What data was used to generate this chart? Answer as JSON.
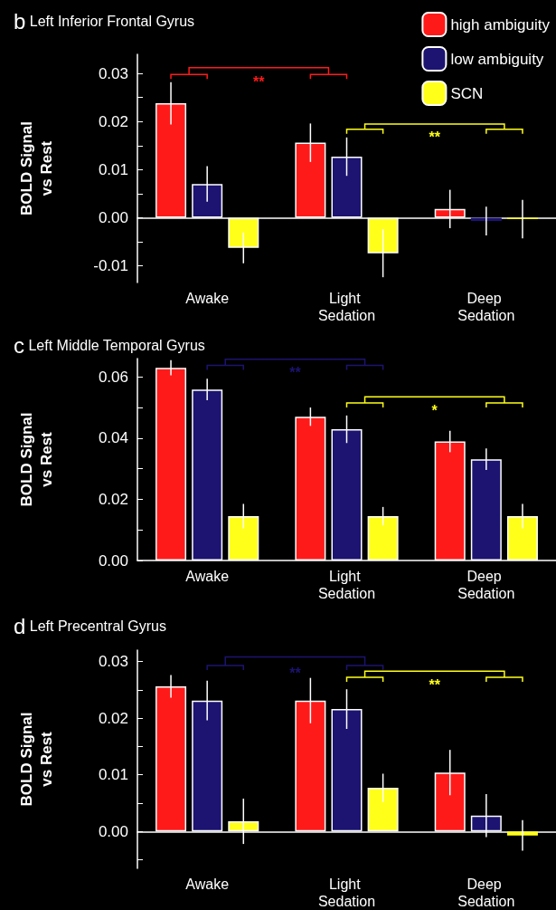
{
  "chart_data": [
    {
      "type": "bar",
      "title": "b Left Inferior Frontal Gyrus",
      "ylabel": "BOLD Signal\nvs Rest",
      "categories": [
        "Awake",
        "Light Sedation",
        "Deep Sedation"
      ],
      "series": [
        {
          "name": "high ambiguity",
          "color": "#ff1a1a",
          "values": [
            0.0238,
            0.0156,
            0.0018
          ],
          "errors": [
            0.0044,
            0.004,
            0.004
          ]
        },
        {
          "name": "low ambiguity",
          "color": "#1c1470",
          "values": [
            0.007,
            0.0127,
            -0.0007
          ],
          "errors": [
            0.0037,
            0.004,
            0.003
          ]
        },
        {
          "name": "SCN",
          "color": "#ffff1a",
          "values": [
            -0.0063,
            -0.0074,
            -0.0003
          ],
          "errors": [
            0.0032,
            0.005,
            0.004
          ]
        }
      ],
      "ylim": [
        -0.0135,
        0.034
      ],
      "yticks": [
        -0.01,
        {
          "value": -0.005,
          "label": null
        },
        "0.00",
        {
          "value": 0.005,
          "label": null
        },
        0.01,
        {
          "value": 0.015,
          "label": null
        },
        0.02,
        {
          "value": 0.025,
          "label": null
        },
        0.03
      ],
      "annotations": [
        "**",
        "**"
      ],
      "grid": false,
      "legend": "top right"
    },
    {
      "type": "bar",
      "title": "c Left Middle Temporal Gyrus",
      "ylabel": "BOLD Signal\nvs Rest",
      "categories": [
        "Awake",
        "Light Sedation",
        "Deep Sedation"
      ],
      "series": [
        {
          "color": "#ff1a1a",
          "values": [
            0.063,
            0.047,
            0.0389
          ],
          "errors": [
            0.0025,
            0.003,
            0.0035
          ]
        },
        {
          "color": "#1c1470",
          "values": [
            0.0559,
            0.0429,
            0.0331
          ],
          "errors": [
            0.0035,
            0.0045,
            0.0035
          ]
        },
        {
          "color": "#ffff1a",
          "values": [
            0.0145,
            0.0145,
            0.0145
          ],
          "errors": [
            0.004,
            0.003,
            0.004
          ]
        }
      ],
      "ylim": [
        0,
        0.066
      ],
      "yticks": [
        "0.00",
        {
          "value": 0.01,
          "label": null
        },
        0.02,
        {
          "value": 0.03,
          "label": null
        },
        0.04,
        {
          "value": 0.05,
          "label": null
        },
        0.06
      ],
      "annotations": [
        "**",
        "*"
      ],
      "grid": false
    },
    {
      "type": "bar",
      "title": "d Left Precentral Gyrus",
      "ylabel": "BOLD Signal\nvs Rest",
      "categories": [
        "Awake",
        "Light Sedation",
        "Deep Sedation"
      ],
      "series": [
        {
          "color": "#ff1a1a",
          "values": [
            0.0256,
            0.0231,
            0.0104
          ],
          "errors": [
            0.002,
            0.004,
            0.004
          ]
        },
        {
          "color": "#1c1470",
          "values": [
            0.0231,
            0.0216,
            0.0028
          ],
          "errors": [
            0.0035,
            0.0035,
            0.0038
          ]
        },
        {
          "color": "#ffff1a",
          "values": [
            0.0018,
            0.0077,
            -0.0007
          ],
          "errors": [
            0.004,
            0.0025,
            0.0027
          ]
        }
      ],
      "ylim": [
        -0.0065,
        0.032
      ],
      "yticks": [
        {
          "value": -0.005,
          "label": null
        },
        "0.00",
        {
          "value": 0.005,
          "label": null
        },
        0.01,
        {
          "value": 0.015,
          "label": null
        },
        0.02,
        {
          "value": 0.025,
          "label": null
        },
        0.03
      ],
      "annotations": [
        "**",
        "**"
      ],
      "grid": false
    }
  ]
}
